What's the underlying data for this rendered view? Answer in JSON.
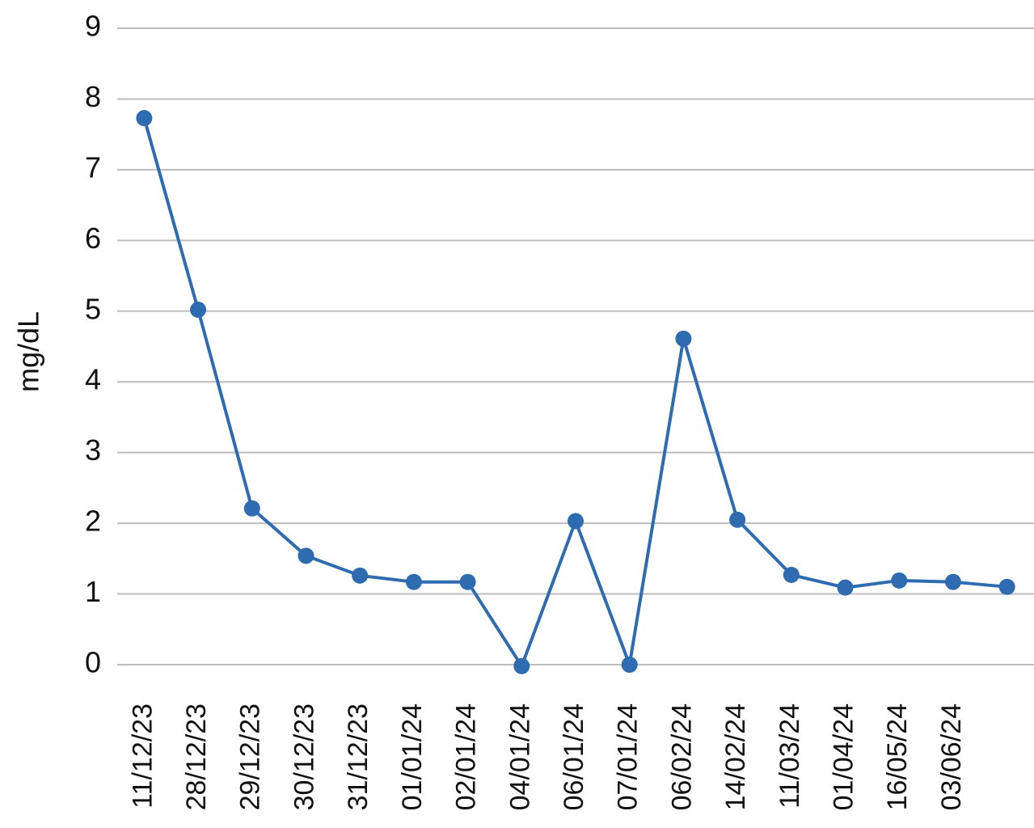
{
  "chart_data": {
    "type": "line",
    "y_label": "mg/dL",
    "categories": [
      "11/12/23",
      "28/12/23",
      "29/12/23",
      "30/12/23",
      "31/12/23",
      "01/01/24",
      "02/01/24",
      "04/01/24",
      "06/01/24",
      "07/01/24",
      "06/02/24",
      "14/02/24",
      "11/03/24",
      "01/04/24",
      "16/05/24",
      "03/06/24",
      null
    ],
    "series": [
      {
        "color": "#2e6bb0",
        "values": [
          7.73,
          5.02,
          2.21,
          1.54,
          1.26,
          1.17,
          1.17,
          -0.02,
          2.03,
          0,
          4.61,
          2.05,
          1.27,
          1.09,
          1.19,
          1.17,
          1.1
        ]
      }
    ],
    "ylim": [
      0,
      9
    ],
    "yticks": [
      0,
      1,
      2,
      3,
      4,
      5,
      6,
      7,
      8,
      9
    ],
    "grid": true
  }
}
